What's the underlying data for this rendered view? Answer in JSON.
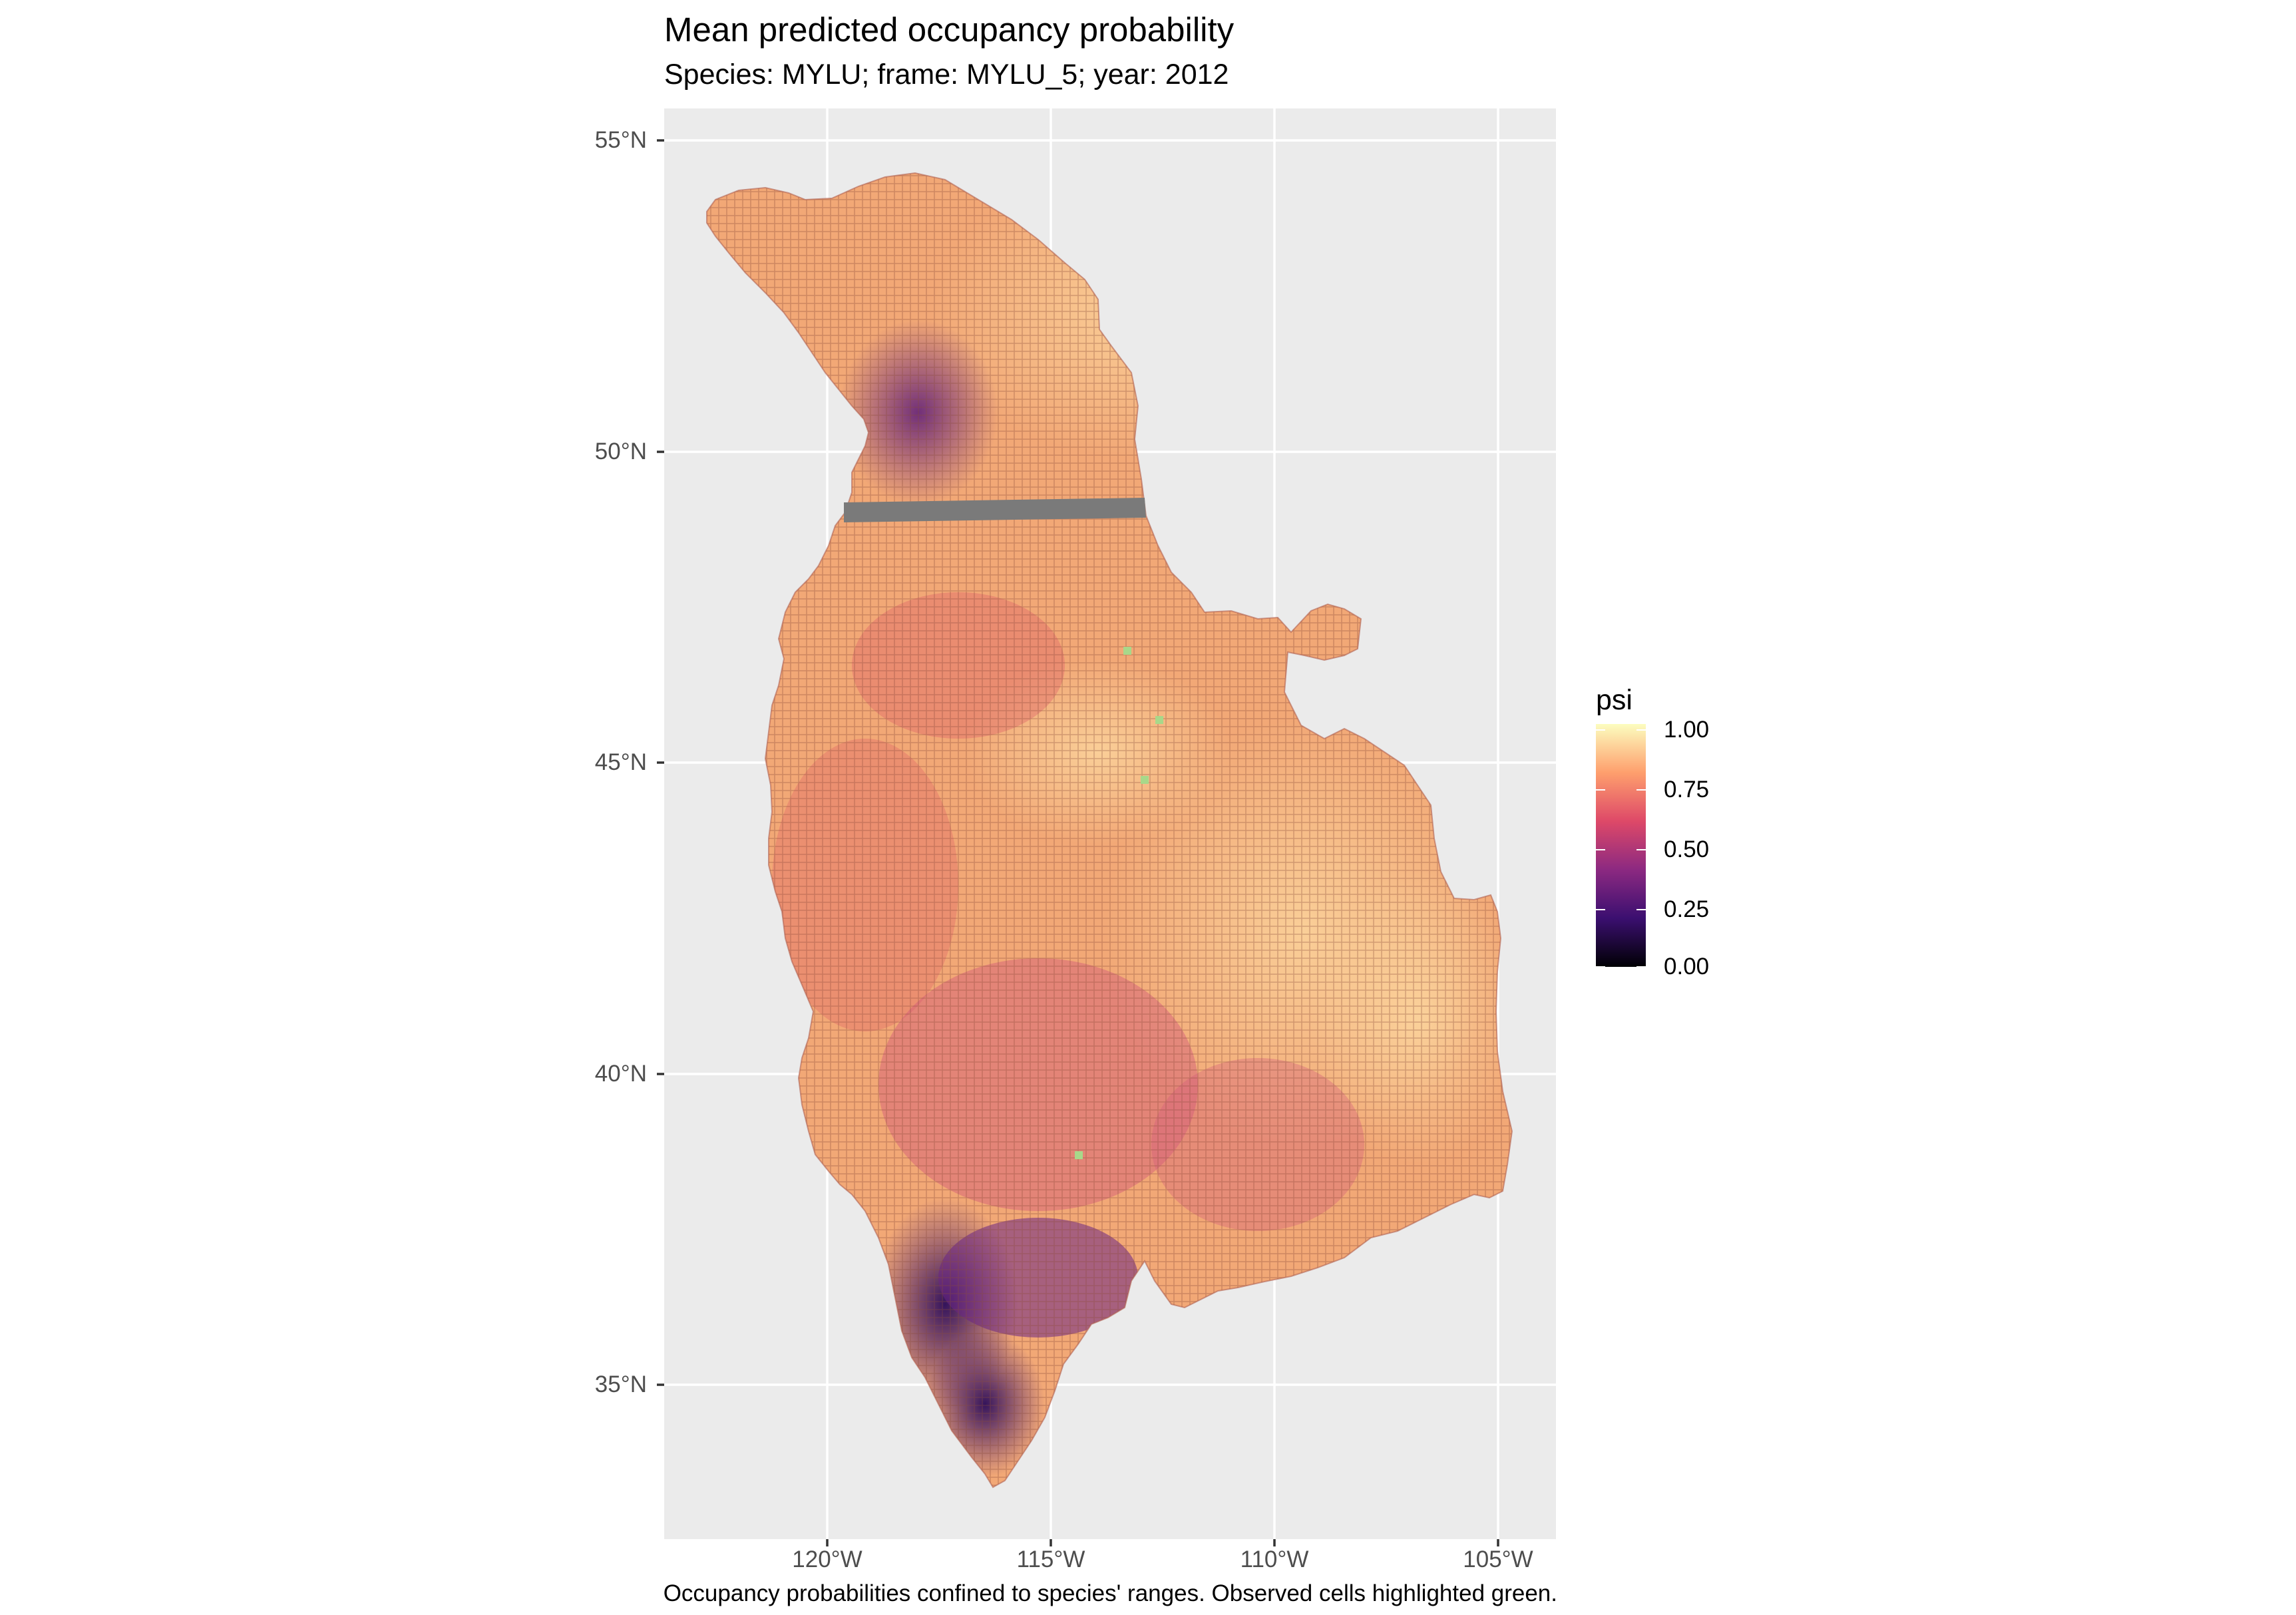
{
  "title": "Mean predicted occupancy probability",
  "subtitle": "Species: MYLU; frame: MYLU_5; year: 2012",
  "caption": "Occupancy probabilities confined to species' ranges. Observed cells highlighted green.",
  "axes": {
    "x_ticks": [
      "120°W",
      "115°W",
      "110°W",
      "105°W"
    ],
    "y_ticks": [
      "55°N",
      "50°N",
      "45°N",
      "40°N",
      "35°N"
    ],
    "x_range_deg": [
      -123.8,
      -103.6
    ],
    "y_range_deg": [
      32.6,
      55.5
    ],
    "panel_background": "#ebebeb",
    "grid_color": "#ffffff"
  },
  "legend": {
    "title": "psi",
    "labels": [
      "1.00",
      "0.75",
      "0.50",
      "0.25",
      "0.00"
    ],
    "values": [
      1.0,
      0.75,
      0.5,
      0.25,
      0.0
    ],
    "colormap": "magma",
    "stops": [
      "#000004",
      "#3b0f70",
      "#8c2981",
      "#de4968",
      "#fe9f6d",
      "#fcfdbf"
    ]
  },
  "map": {
    "observed_color": "#a8d88a",
    "excluded_band_color": "#7a7a7a",
    "cell_border_color": "#8a4a3a"
  }
}
